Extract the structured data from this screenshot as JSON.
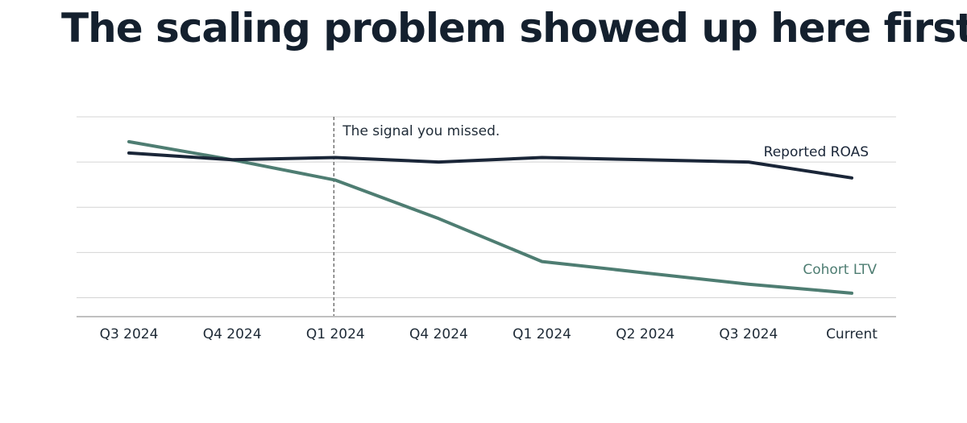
{
  "page": {
    "title": "The scaling problem showed up here first."
  },
  "colors": {
    "title": "#14202e",
    "reported_roas": "#1a2638",
    "cohort_ltv": "#4e7d72",
    "grid": "#d4d4d4",
    "axis": "#9a9a9a",
    "marker": "#555555"
  },
  "chart_data": {
    "type": "line",
    "categories": [
      "Q3 2024",
      "Q4 2024",
      "Q1 2024",
      "Q4 2024",
      "Q1 2024",
      "Q2 2024",
      "Q3 2024",
      "Current"
    ],
    "series": [
      {
        "name": "Reported ROAS",
        "values": [
          3.2,
          3.05,
          3.1,
          3.0,
          3.1,
          3.05,
          3.0,
          2.65
        ]
      },
      {
        "name": "Cohort LTV",
        "values": [
          3.45,
          3.05,
          2.6,
          1.75,
          0.8,
          0.55,
          0.3,
          0.1
        ]
      }
    ],
    "annotation": {
      "text": "The signal you missed.",
      "category_index": 2
    },
    "ylim": [
      -0.4,
      4.0
    ],
    "gridlines": [
      0.0,
      1.0,
      2.0,
      3.0,
      4.0
    ],
    "grid": true,
    "legend": "inline-labels",
    "title": "",
    "xlabel": "",
    "ylabel": ""
  }
}
